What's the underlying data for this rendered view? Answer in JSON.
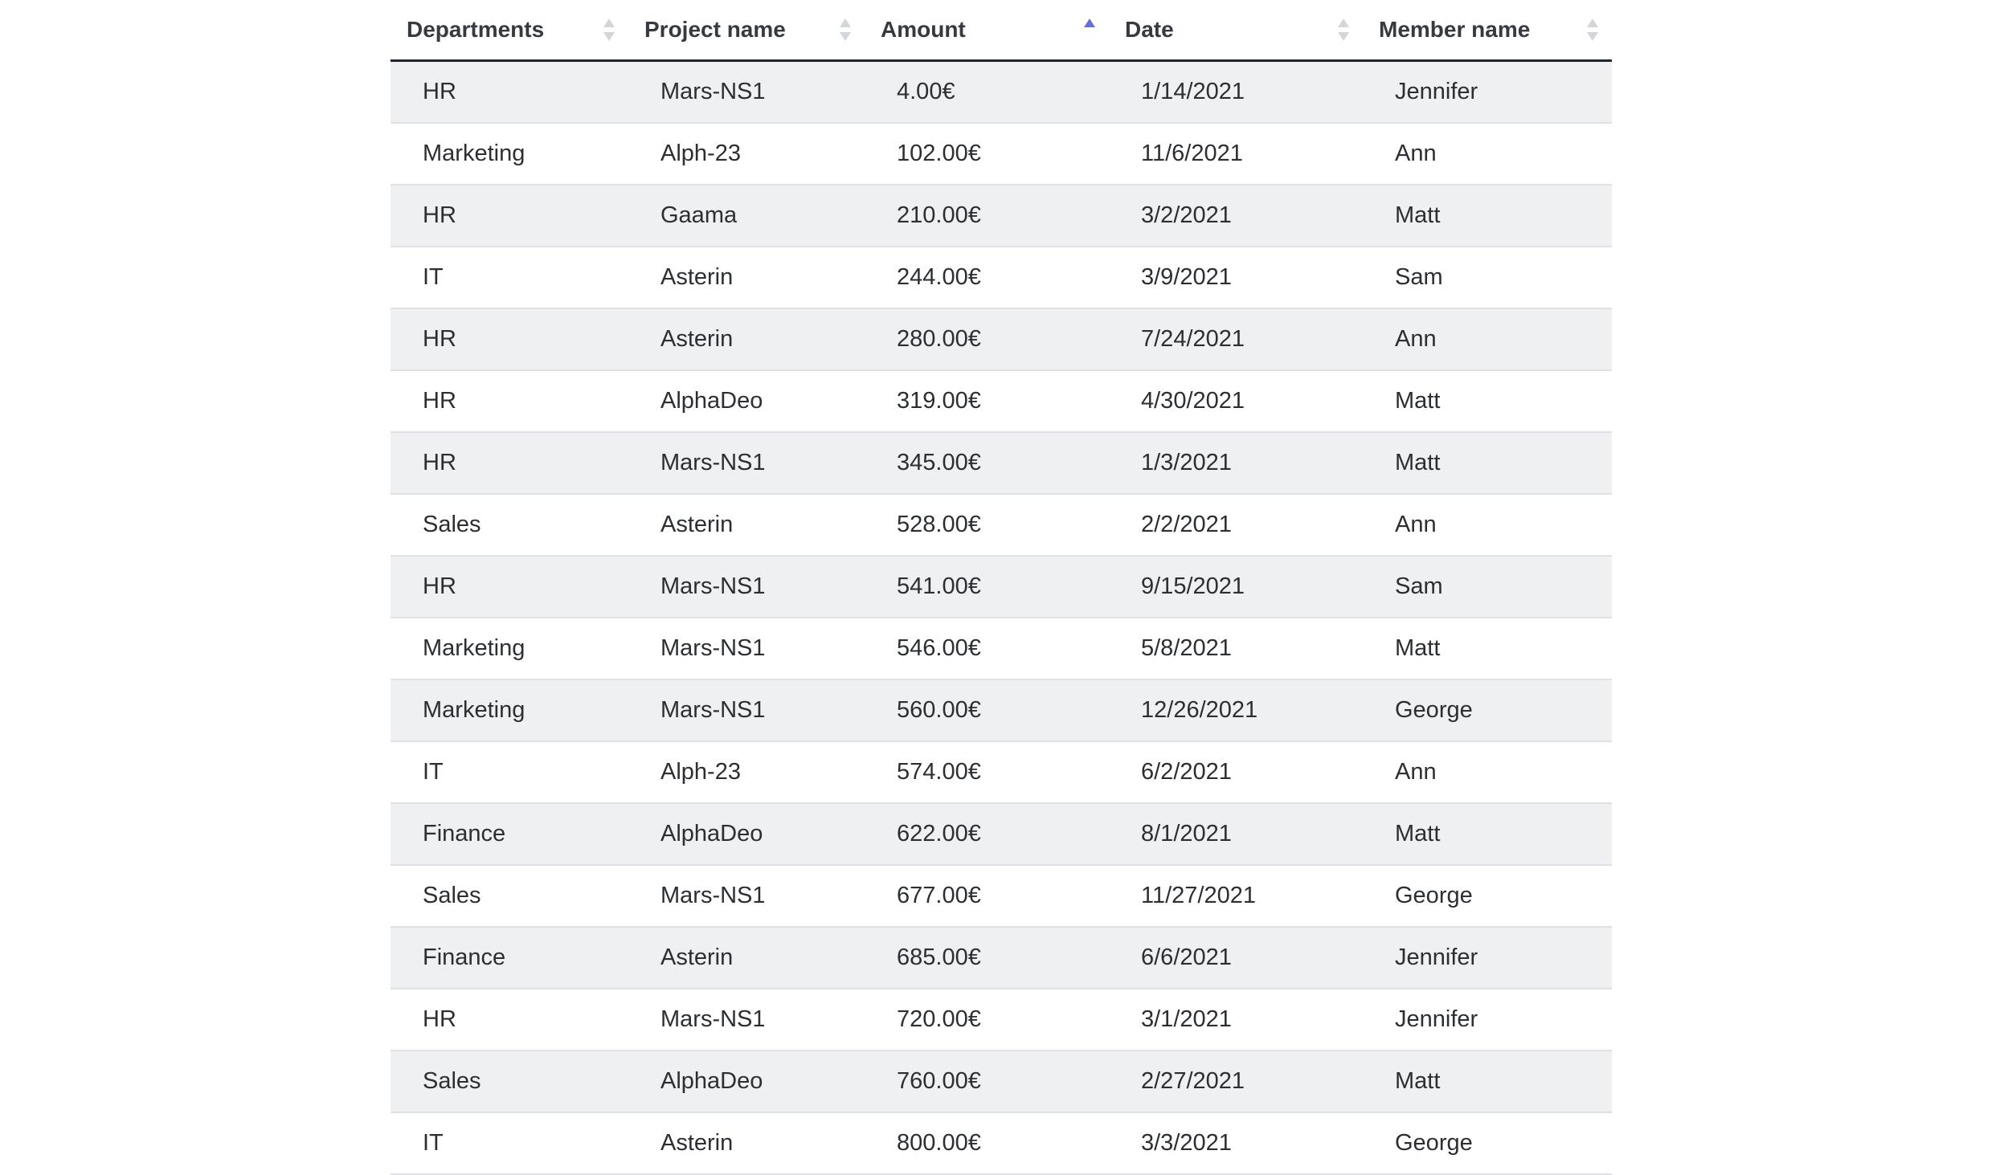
{
  "table": {
    "columns": [
      {
        "label": "Departments",
        "sort": "none"
      },
      {
        "label": "Project name",
        "sort": "none"
      },
      {
        "label": "Amount",
        "sort": "asc"
      },
      {
        "label": "Date",
        "sort": "none"
      },
      {
        "label": "Member name",
        "sort": "none"
      }
    ],
    "rows": [
      {
        "department": "HR",
        "project": "Mars-NS1",
        "amount": "4.00€",
        "date": "1/14/2021",
        "member": "Jennifer"
      },
      {
        "department": "Marketing",
        "project": "Alph-23",
        "amount": "102.00€",
        "date": "11/6/2021",
        "member": "Ann"
      },
      {
        "department": "HR",
        "project": "Gaama",
        "amount": "210.00€",
        "date": "3/2/2021",
        "member": "Matt"
      },
      {
        "department": "IT",
        "project": "Asterin",
        "amount": "244.00€",
        "date": "3/9/2021",
        "member": "Sam"
      },
      {
        "department": "HR",
        "project": "Asterin",
        "amount": "280.00€",
        "date": "7/24/2021",
        "member": "Ann"
      },
      {
        "department": "HR",
        "project": "AlphaDeo",
        "amount": "319.00€",
        "date": "4/30/2021",
        "member": "Matt"
      },
      {
        "department": "HR",
        "project": "Mars-NS1",
        "amount": "345.00€",
        "date": "1/3/2021",
        "member": "Matt"
      },
      {
        "department": "Sales",
        "project": "Asterin",
        "amount": "528.00€",
        "date": "2/2/2021",
        "member": "Ann"
      },
      {
        "department": "HR",
        "project": "Mars-NS1",
        "amount": "541.00€",
        "date": "9/15/2021",
        "member": "Sam"
      },
      {
        "department": "Marketing",
        "project": "Mars-NS1",
        "amount": "546.00€",
        "date": "5/8/2021",
        "member": "Matt"
      },
      {
        "department": "Marketing",
        "project": "Mars-NS1",
        "amount": "560.00€",
        "date": "12/26/2021",
        "member": "George"
      },
      {
        "department": "IT",
        "project": "Alph-23",
        "amount": "574.00€",
        "date": "6/2/2021",
        "member": "Ann"
      },
      {
        "department": "Finance",
        "project": "AlphaDeo",
        "amount": "622.00€",
        "date": "8/1/2021",
        "member": "Matt"
      },
      {
        "department": "Sales",
        "project": "Mars-NS1",
        "amount": "677.00€",
        "date": "11/27/2021",
        "member": "George"
      },
      {
        "department": "Finance",
        "project": "Asterin",
        "amount": "685.00€",
        "date": "6/6/2021",
        "member": "Jennifer"
      },
      {
        "department": "HR",
        "project": "Mars-NS1",
        "amount": "720.00€",
        "date": "3/1/2021",
        "member": "Jennifer"
      },
      {
        "department": "Sales",
        "project": "AlphaDeo",
        "amount": "760.00€",
        "date": "2/27/2021",
        "member": "Matt"
      },
      {
        "department": "IT",
        "project": "Asterin",
        "amount": "800.00€",
        "date": "3/3/2021",
        "member": "George"
      }
    ]
  }
}
